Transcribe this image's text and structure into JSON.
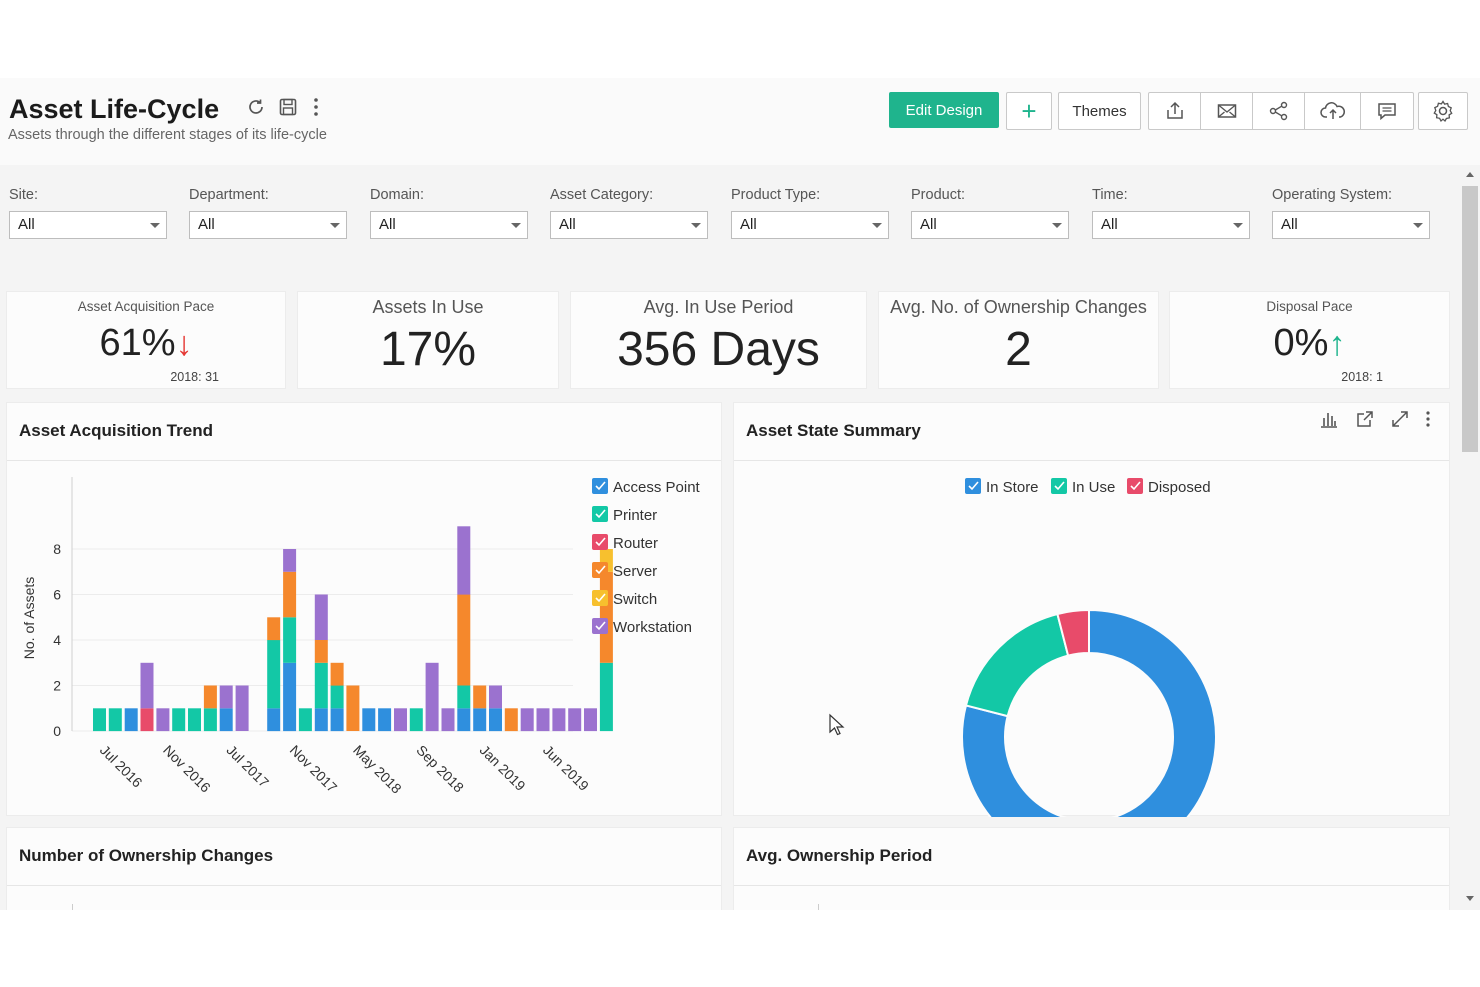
{
  "header": {
    "title": "Asset Life-Cycle",
    "subtitle": "Assets through the different stages of its life-cycle",
    "edit_design_label": "Edit Design",
    "add_label": "+",
    "themes_label": "Themes"
  },
  "filters": [
    {
      "label": "Site:",
      "value": "All"
    },
    {
      "label": "Department:",
      "value": "All"
    },
    {
      "label": "Domain:",
      "value": "All"
    },
    {
      "label": "Asset Category:",
      "value": "All"
    },
    {
      "label": "Product Type:",
      "value": "All"
    },
    {
      "label": "Product:",
      "value": "All"
    },
    {
      "label": "Time:",
      "value": "All"
    },
    {
      "label": "Operating System:",
      "value": "All"
    }
  ],
  "kpis": {
    "acquisition": {
      "title": "Asset Acquisition Pace",
      "value": "61%",
      "arrow": "↓",
      "footnote": "2018: 31"
    },
    "in_use": {
      "title": "Assets In Use",
      "value": "17%"
    },
    "period": {
      "title": "Avg. In Use Period",
      "value": "356 Days"
    },
    "ownership": {
      "title": "Avg. No. of Ownership Changes",
      "value": "2"
    },
    "disposal": {
      "title": "Disposal Pace",
      "value": "0%",
      "arrow": "↑",
      "footnote": "2018: 1"
    }
  },
  "panels": {
    "trend_title": "Asset Acquisition Trend",
    "state_title": "Asset State Summary",
    "ownership_changes_title": "Number of Ownership Changes",
    "ownership_period_title": "Avg. Ownership Period"
  },
  "colors": {
    "access_point": "#2f8fde",
    "printer": "#13c8a6",
    "router": "#e84b6a",
    "server": "#f5882c",
    "switch": "#f7c02e",
    "workstation": "#9b72cf",
    "in_store": "#2f8fde",
    "in_use": "#13c8a6",
    "disposed": "#e84b6a",
    "primary": "#1fb48d"
  },
  "chart_data": [
    {
      "type": "bar",
      "stacked": true,
      "title": "Asset Acquisition Trend",
      "ylabel": "No. of Assets",
      "ylim": [
        0,
        10
      ],
      "yticks": [
        0,
        2,
        4,
        6,
        8
      ],
      "grid": true,
      "legend_position": "right",
      "xtick_labels": [
        "Jul 2016",
        "Nov 2016",
        "Jul 2017",
        "Nov 2017",
        "May 2018",
        "Sep 2018",
        "Jan 2019",
        "Jun 2019"
      ],
      "series": [
        {
          "name": "Access Point",
          "color_key": "access_point",
          "values": [
            0,
            0,
            1,
            0,
            0,
            0,
            0,
            0,
            1,
            0,
            0,
            1,
            3,
            0,
            1,
            1,
            0,
            1,
            1,
            0,
            0,
            0,
            0,
            1,
            1,
            1,
            0,
            0,
            0,
            0,
            0,
            0,
            0
          ]
        },
        {
          "name": "Printer",
          "color_key": "printer",
          "values": [
            1,
            1,
            0,
            0,
            0,
            1,
            1,
            1,
            0,
            0,
            0,
            3,
            2,
            1,
            2,
            1,
            0,
            0,
            0,
            0,
            1,
            0,
            0,
            1,
            0,
            0,
            0,
            0,
            0,
            0,
            0,
            0,
            3
          ]
        },
        {
          "name": "Router",
          "color_key": "router",
          "values": [
            0,
            0,
            0,
            1,
            0,
            0,
            0,
            0,
            0,
            0,
            0,
            0,
            0,
            0,
            0,
            0,
            0,
            0,
            0,
            0,
            0,
            0,
            0,
            0,
            0,
            0,
            0,
            0,
            0,
            0,
            0,
            0,
            0
          ]
        },
        {
          "name": "Server",
          "color_key": "server",
          "values": [
            0,
            0,
            0,
            0,
            0,
            0,
            0,
            1,
            0,
            0,
            0,
            1,
            2,
            0,
            1,
            1,
            2,
            0,
            0,
            0,
            0,
            0,
            0,
            4,
            1,
            0,
            1,
            0,
            0,
            0,
            0,
            0,
            4
          ]
        },
        {
          "name": "Switch",
          "color_key": "switch",
          "values": [
            0,
            0,
            0,
            0,
            0,
            0,
            0,
            0,
            0,
            0,
            0,
            0,
            0,
            0,
            0,
            0,
            0,
            0,
            0,
            0,
            0,
            0,
            0,
            0,
            0,
            0,
            0,
            0,
            0,
            0,
            0,
            0,
            1
          ]
        },
        {
          "name": "Workstation",
          "color_key": "workstation",
          "values": [
            0,
            0,
            0,
            2,
            1,
            0,
            0,
            0,
            1,
            2,
            0,
            0,
            1,
            0,
            2,
            0,
            0,
            0,
            0,
            1,
            0,
            3,
            1,
            3,
            0,
            1,
            0,
            1,
            1,
            1,
            1,
            1,
            0
          ]
        }
      ]
    },
    {
      "type": "pie",
      "donut": true,
      "title": "Asset State Summary",
      "legend_position": "top",
      "labels": [
        "In Store",
        "In Use",
        "Disposed"
      ],
      "color_keys": [
        "in_store",
        "in_use",
        "disposed"
      ],
      "values": [
        79,
        17,
        4
      ]
    }
  ]
}
